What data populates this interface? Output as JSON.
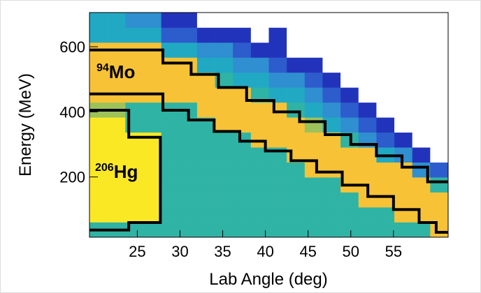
{
  "chart_data": {
    "type": "heatmap",
    "x_label": "Lab Angle (deg)",
    "y_label": "Energy (MeV)",
    "xlim": [
      19.4,
      61.4
    ],
    "ylim": [
      15,
      705
    ],
    "xticks": [
      25,
      30,
      35,
      40,
      45,
      50,
      55
    ],
    "yticks": [
      200,
      400,
      600
    ],
    "xbins": [
      19.4,
      21.5,
      23.6,
      25.7,
      27.8,
      29.9,
      32,
      34.1,
      36.2,
      38.3,
      40.4,
      42.5,
      44.6,
      46.7,
      48.8,
      50.9,
      53,
      55.1,
      57.2,
      59.3,
      61.4
    ],
    "ybins": [
      15,
      61,
      107,
      153,
      199,
      245,
      291,
      337,
      383,
      429,
      475,
      521,
      567,
      613,
      659,
      705
    ],
    "palette": [
      "#ffffff",
      "#2233bb",
      "#2d5ccc",
      "#2f8fd0",
      "#21a9c4",
      "#2fb3a4",
      "#9cc25a",
      "#d9c244",
      "#f7c235",
      "#fbe825"
    ],
    "z": [
      [
        5,
        9,
        9,
        9,
        9,
        9,
        9,
        9,
        6,
        8,
        8,
        8,
        8,
        4,
        4
      ],
      [
        5,
        9,
        9,
        9,
        9,
        9,
        9,
        9,
        6,
        8,
        8,
        8,
        8,
        4,
        4
      ],
      [
        5,
        9,
        9,
        9,
        9,
        9,
        9,
        5,
        5,
        8,
        8,
        8,
        8,
        4,
        3
      ],
      [
        5,
        9,
        9,
        9,
        9,
        9,
        9,
        5,
        5,
        8,
        8,
        8,
        8,
        4,
        3
      ],
      [
        5,
        5,
        5,
        5,
        5,
        5,
        5,
        5,
        5,
        8,
        8,
        8,
        4,
        2,
        1
      ],
      [
        5,
        5,
        5,
        5,
        5,
        5,
        5,
        5,
        5,
        8,
        8,
        8,
        4,
        2,
        1
      ],
      [
        5,
        5,
        5,
        5,
        5,
        5,
        5,
        5,
        8,
        8,
        8,
        4,
        3,
        1,
        0
      ],
      [
        5,
        5,
        5,
        5,
        5,
        5,
        5,
        8,
        8,
        8,
        5,
        4,
        3,
        1,
        0
      ],
      [
        5,
        5,
        5,
        5,
        5,
        5,
        5,
        8,
        8,
        8,
        4,
        3,
        2,
        1,
        0
      ],
      [
        5,
        5,
        5,
        5,
        5,
        5,
        8,
        8,
        8,
        5,
        4,
        3,
        1,
        0,
        0
      ],
      [
        5,
        5,
        5,
        5,
        5,
        5,
        8,
        8,
        8,
        4,
        3,
        2,
        1,
        1,
        0
      ],
      [
        5,
        5,
        5,
        5,
        5,
        8,
        8,
        8,
        5,
        4,
        3,
        1,
        0,
        0,
        0
      ],
      [
        5,
        5,
        5,
        5,
        8,
        8,
        8,
        6,
        4,
        3,
        2,
        1,
        0,
        0,
        0
      ],
      [
        5,
        5,
        5,
        5,
        8,
        8,
        8,
        4,
        3,
        2,
        1,
        0,
        0,
        0,
        0
      ],
      [
        5,
        5,
        5,
        8,
        8,
        8,
        5,
        3,
        2,
        1,
        0,
        0,
        0,
        0,
        0
      ],
      [
        5,
        5,
        8,
        8,
        8,
        8,
        3,
        2,
        1,
        0,
        0,
        0,
        0,
        0,
        0
      ],
      [
        5,
        5,
        8,
        8,
        8,
        4,
        2,
        1,
        0,
        0,
        0,
        0,
        0,
        0,
        0
      ],
      [
        5,
        8,
        8,
        8,
        8,
        3,
        1,
        0,
        0,
        0,
        0,
        0,
        0,
        0,
        0
      ],
      [
        5,
        8,
        8,
        8,
        3,
        1,
        0,
        0,
        0,
        0,
        0,
        0,
        0,
        0,
        0
      ],
      [
        8,
        8,
        8,
        5,
        2,
        0,
        0,
        0,
        0,
        0,
        0,
        0,
        0,
        0,
        0
      ]
    ],
    "contour_color": "#000000",
    "contours": [
      {
        "x": [
          19.4,
          28,
          28,
          31.3,
          31.3,
          34.5,
          34.5,
          37.8,
          37.8,
          41,
          41,
          44,
          44,
          47,
          47,
          50,
          50,
          53,
          53,
          56,
          56,
          59,
          59,
          61.4
        ],
        "y": [
          590,
          590,
          550,
          550,
          515,
          515,
          475,
          475,
          435,
          435,
          400,
          400,
          370,
          370,
          330,
          330,
          300,
          300,
          265,
          265,
          230,
          230,
          185,
          185
        ]
      },
      {
        "x": [
          19.4,
          28,
          28,
          31,
          31,
          34,
          34,
          37,
          37,
          40,
          40,
          43,
          43,
          46,
          46,
          49,
          49,
          52,
          52,
          55,
          55,
          58,
          58,
          60,
          60,
          61.4
        ],
        "y": [
          455,
          455,
          405,
          405,
          375,
          375,
          340,
          340,
          310,
          310,
          280,
          280,
          250,
          250,
          215,
          215,
          175,
          175,
          140,
          140,
          100,
          100,
          60,
          60,
          30,
          30
        ]
      },
      {
        "x": [
          19.4,
          24,
          24,
          27.7,
          27.7,
          24,
          24,
          19.4
        ],
        "y": [
          405,
          405,
          322,
          322,
          60,
          60,
          37,
          37
        ]
      }
    ],
    "annotations": [
      {
        "mass": "94",
        "element": "Mo"
      },
      {
        "mass": "206",
        "element": "Hg"
      }
    ]
  }
}
